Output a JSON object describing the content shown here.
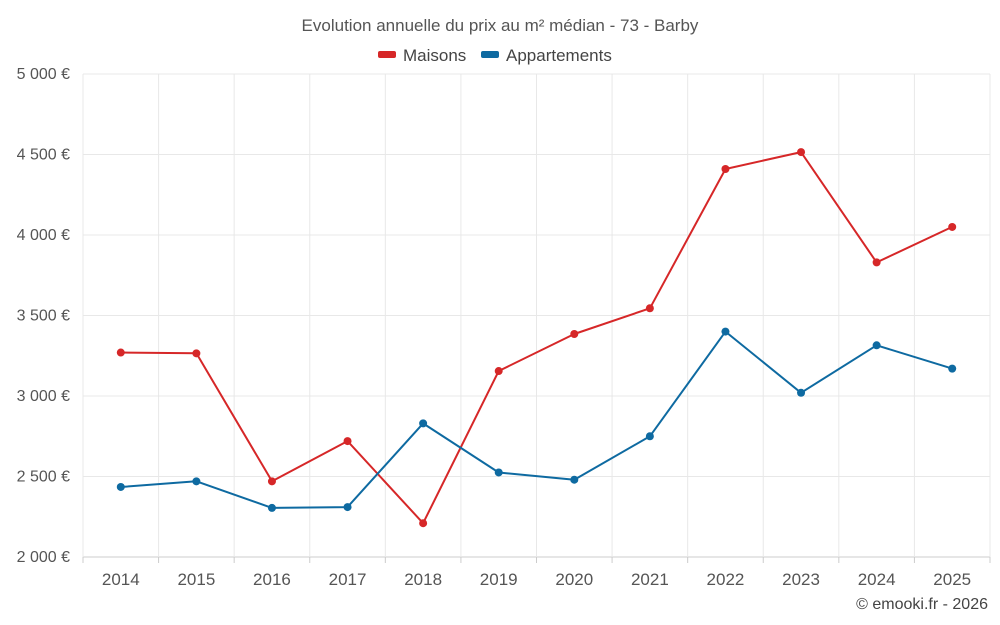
{
  "chart_data": {
    "type": "line",
    "title": "Evolution annuelle du prix au m² médian - 73 - Barby",
    "categories": [
      "2014",
      "2015",
      "2016",
      "2017",
      "2018",
      "2019",
      "2020",
      "2021",
      "2022",
      "2023",
      "2024",
      "2025"
    ],
    "series": [
      {
        "name": "Maisons",
        "color": "#d62728",
        "values": [
          3270,
          3265,
          2470,
          2720,
          2210,
          3155,
          3385,
          3545,
          4410,
          4515,
          3830,
          4050
        ]
      },
      {
        "name": "Appartements",
        "color": "#0e6aa1",
        "values": [
          2435,
          2470,
          2305,
          2310,
          2830,
          2525,
          2480,
          2750,
          3400,
          3020,
          3315,
          3170
        ]
      }
    ],
    "ylim": [
      2000,
      5000
    ],
    "yticks": [
      {
        "value": 2000,
        "label": "2 000 €"
      },
      {
        "value": 2500,
        "label": "2 500 €"
      },
      {
        "value": 3000,
        "label": "3 000 €"
      },
      {
        "value": 3500,
        "label": "3 500 €"
      },
      {
        "value": 4000,
        "label": "4 000 €"
      },
      {
        "value": 4500,
        "label": "4 500 €"
      },
      {
        "value": 5000,
        "label": "5 000 €"
      }
    ],
    "xlabel": "",
    "ylabel": "",
    "grid": true,
    "legend_position": "top-center"
  },
  "credit": "© emooki.fr - 2026"
}
